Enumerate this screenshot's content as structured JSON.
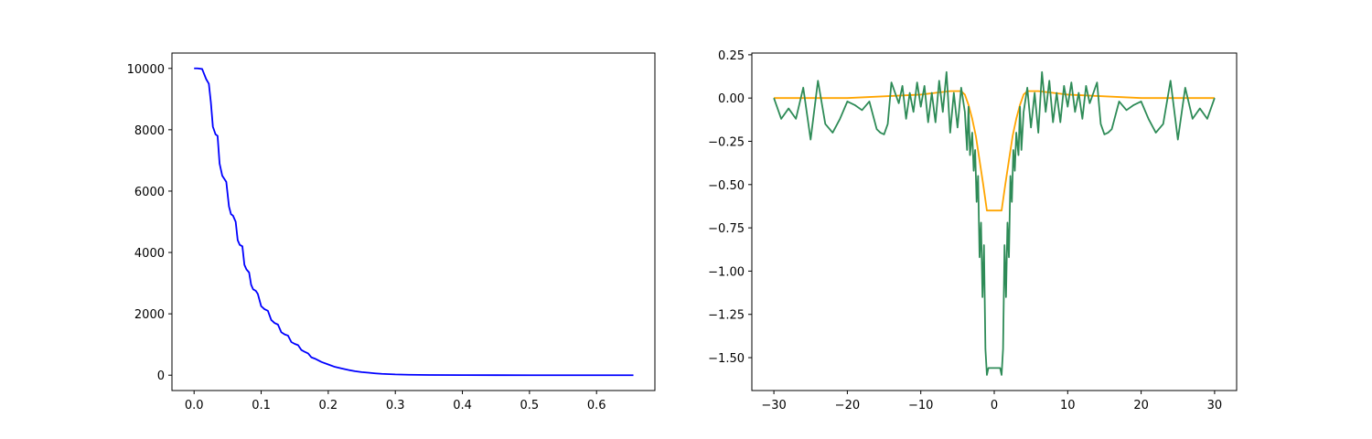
{
  "chart_data": [
    {
      "type": "line",
      "title": "",
      "xlabel": "",
      "ylabel": "",
      "xlim": [
        -0.033,
        0.687
      ],
      "ylim": [
        -500,
        10500
      ],
      "xticks": [
        0.0,
        0.1,
        0.2,
        0.3,
        0.4,
        0.5,
        0.6
      ],
      "xtick_labels": [
        "0.0",
        "0.1",
        "0.2",
        "0.3",
        "0.4",
        "0.5",
        "0.6"
      ],
      "yticks": [
        0,
        2000,
        4000,
        6000,
        8000,
        10000
      ],
      "ytick_labels": [
        "0",
        "2000",
        "4000",
        "6000",
        "8000",
        "10000"
      ],
      "grid": false,
      "series": [
        {
          "color": "#0000ff",
          "x": [
            0.0,
            0.005,
            0.012,
            0.018,
            0.022,
            0.025,
            0.028,
            0.032,
            0.035,
            0.038,
            0.042,
            0.045,
            0.048,
            0.052,
            0.055,
            0.058,
            0.062,
            0.065,
            0.068,
            0.072,
            0.075,
            0.078,
            0.082,
            0.085,
            0.088,
            0.092,
            0.095,
            0.1,
            0.105,
            0.11,
            0.115,
            0.12,
            0.125,
            0.13,
            0.135,
            0.14,
            0.145,
            0.15,
            0.155,
            0.16,
            0.165,
            0.17,
            0.175,
            0.18,
            0.19,
            0.2,
            0.21,
            0.22,
            0.23,
            0.24,
            0.25,
            0.26,
            0.27,
            0.28,
            0.3,
            0.32,
            0.35,
            0.4,
            0.45,
            0.5,
            0.55,
            0.6,
            0.655
          ],
          "y": [
            10000,
            10000,
            9980,
            9650,
            9500,
            8900,
            8100,
            7850,
            7800,
            6900,
            6500,
            6400,
            6300,
            5500,
            5250,
            5200,
            5000,
            4400,
            4250,
            4200,
            3600,
            3450,
            3350,
            2950,
            2800,
            2750,
            2650,
            2250,
            2150,
            2100,
            1800,
            1700,
            1650,
            1400,
            1330,
            1290,
            1080,
            1020,
            980,
            820,
            760,
            710,
            580,
            540,
            430,
            350,
            270,
            220,
            170,
            130,
            100,
            80,
            60,
            45,
            25,
            15,
            7,
            3,
            1,
            0,
            0,
            0,
            0
          ]
        }
      ]
    },
    {
      "type": "line",
      "title": "",
      "xlabel": "",
      "ylabel": "",
      "xlim": [
        -33,
        33
      ],
      "ylim": [
        -1.69,
        0.26
      ],
      "xticks": [
        -30,
        -20,
        -10,
        0,
        10,
        20,
        30
      ],
      "xtick_labels": [
        "−30",
        "−20",
        "−10",
        "0",
        "10",
        "20",
        "30"
      ],
      "yticks": [
        -1.5,
        -1.25,
        -1.0,
        -0.75,
        -0.5,
        -0.25,
        0.0,
        0.25
      ],
      "ytick_labels": [
        "−1.50",
        "−1.25",
        "−1.00",
        "−0.75",
        "−0.50",
        "−0.25",
        "0.00",
        "0.25"
      ],
      "grid": false,
      "series": [
        {
          "color": "#ffa500",
          "x": [
            -30,
            -25,
            -20,
            -15,
            -10,
            -8,
            -6,
            -5,
            -4.5,
            -4,
            -3.5,
            -3,
            -2.5,
            -2,
            -1.5,
            -1,
            1,
            1.5,
            2,
            2.5,
            3,
            3.5,
            4,
            4.5,
            5,
            6,
            8,
            10,
            15,
            20,
            25,
            30
          ],
          "y": [
            0.0,
            0.0,
            0.0,
            0.01,
            0.02,
            0.03,
            0.04,
            0.04,
            0.04,
            0.02,
            -0.04,
            -0.12,
            -0.22,
            -0.36,
            -0.5,
            -0.65,
            -0.65,
            -0.5,
            -0.36,
            -0.22,
            -0.12,
            -0.04,
            0.02,
            0.04,
            0.04,
            0.04,
            0.03,
            0.02,
            0.01,
            0.0,
            0.0,
            0.0
          ]
        },
        {
          "color": "#2e8b57",
          "x": [
            -30,
            -29,
            -28,
            -27,
            -26,
            -25,
            -24,
            -23,
            -22,
            -21,
            -20,
            -19,
            -18,
            -17,
            -16,
            -15.5,
            -15,
            -14.5,
            -14,
            -13,
            -12.5,
            -12,
            -11.5,
            -11,
            -10.5,
            -10,
            -9.5,
            -9,
            -8.5,
            -8,
            -7.5,
            -7,
            -6.5,
            -6,
            -5.5,
            -5,
            -4.5,
            -4,
            -3.7,
            -3.5,
            -3.3,
            -3,
            -2.8,
            -2.6,
            -2.4,
            -2.2,
            -2,
            -1.8,
            -1.6,
            -1.4,
            -1.2,
            -1,
            -0.8,
            -0.6,
            -0.4,
            -0.2,
            0,
            0.2,
            0.4,
            0.6,
            0.8,
            1,
            1.2,
            1.4,
            1.6,
            1.8,
            2,
            2.2,
            2.4,
            2.6,
            2.8,
            3,
            3.3,
            3.5,
            3.7,
            4,
            4.5,
            5,
            5.5,
            6,
            6.5,
            7,
            7.5,
            8,
            8.5,
            9,
            9.5,
            10,
            10.5,
            11,
            11.5,
            12,
            12.5,
            13,
            14,
            14.5,
            15,
            15.5,
            16,
            17,
            18,
            19,
            20,
            21,
            22,
            23,
            24,
            25,
            26,
            27,
            28,
            29,
            30
          ],
          "y": [
            0.0,
            -0.12,
            -0.06,
            -0.12,
            0.06,
            -0.24,
            0.1,
            -0.15,
            -0.2,
            -0.12,
            -0.02,
            -0.04,
            -0.07,
            -0.02,
            -0.18,
            -0.2,
            -0.21,
            -0.15,
            0.09,
            -0.03,
            0.07,
            -0.12,
            0.03,
            -0.08,
            0.09,
            -0.05,
            0.07,
            -0.14,
            0.03,
            -0.14,
            0.1,
            -0.08,
            0.15,
            -0.2,
            0.03,
            -0.17,
            0.06,
            -0.08,
            -0.3,
            -0.05,
            -0.33,
            -0.2,
            -0.42,
            -0.3,
            -0.6,
            -0.45,
            -0.92,
            -0.72,
            -1.15,
            -0.85,
            -1.45,
            -1.6,
            -1.56,
            -1.56,
            -1.56,
            -1.56,
            -1.56,
            -1.56,
            -1.56,
            -1.56,
            -1.56,
            -1.6,
            -1.45,
            -0.85,
            -1.15,
            -0.72,
            -0.92,
            -0.45,
            -0.6,
            -0.3,
            -0.42,
            -0.2,
            -0.33,
            -0.05,
            -0.3,
            -0.08,
            0.06,
            -0.17,
            0.03,
            -0.2,
            0.15,
            -0.08,
            0.1,
            -0.14,
            0.03,
            -0.14,
            0.07,
            -0.05,
            0.09,
            -0.08,
            0.03,
            -0.12,
            0.07,
            -0.03,
            0.09,
            -0.15,
            -0.21,
            -0.2,
            -0.18,
            -0.02,
            -0.07,
            -0.04,
            -0.02,
            -0.12,
            -0.2,
            -0.15,
            0.1,
            -0.24,
            0.06,
            -0.12,
            -0.06,
            -0.12,
            0.0
          ]
        }
      ]
    }
  ]
}
